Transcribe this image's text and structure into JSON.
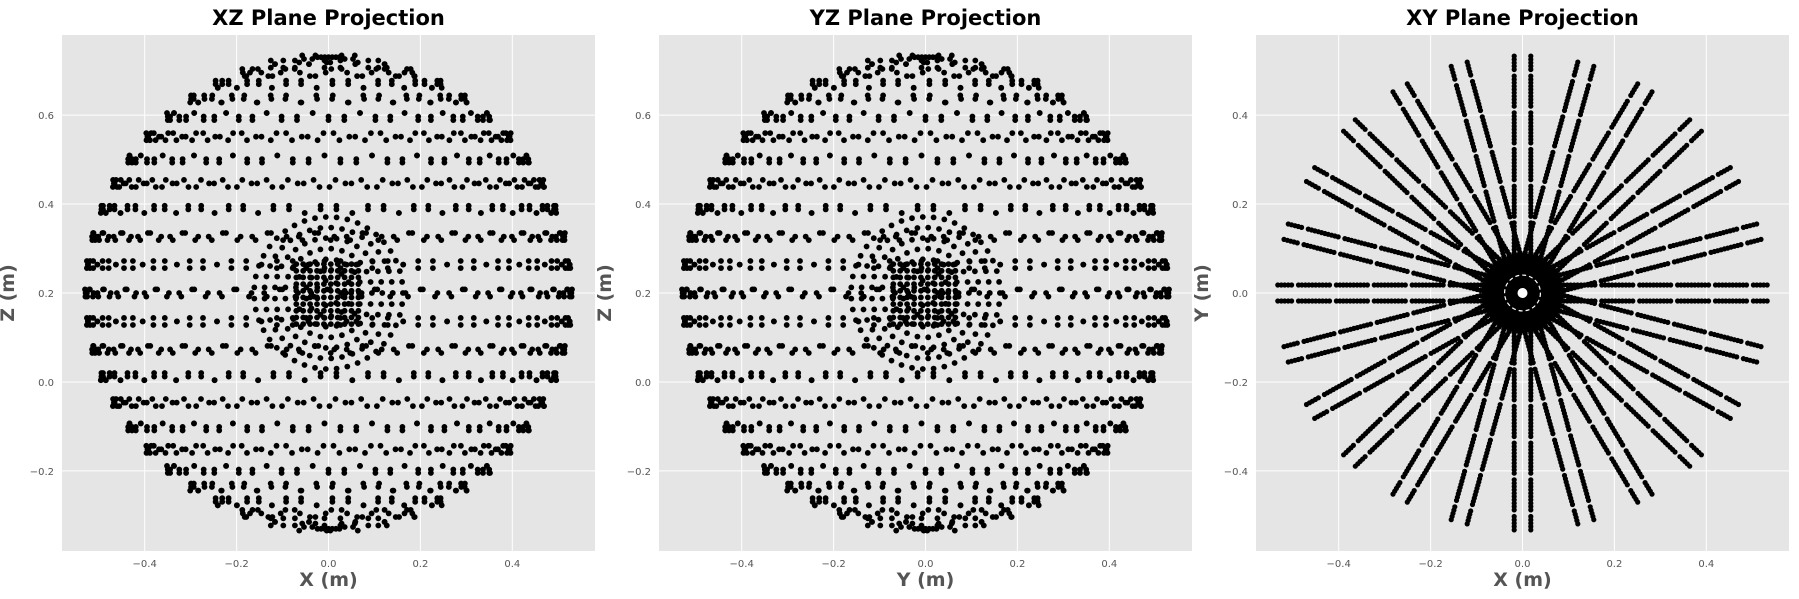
{
  "chart_data": [
    {
      "type": "scatter",
      "title": "XZ Plane Projection",
      "xlabel": "X (m)",
      "ylabel": "Z (m)",
      "xlim": [
        -0.58,
        0.58
      ],
      "ylim": [
        -0.38,
        0.78
      ],
      "xticks": [
        -0.4,
        -0.2,
        0.0,
        0.2,
        0.4
      ],
      "xtick_labels": [
        "−0.4",
        "−0.2",
        "0.0",
        "0.2",
        "0.4"
      ],
      "yticks": [
        -0.2,
        0.0,
        0.2,
        0.4,
        0.6
      ],
      "ytick_labels": [
        "−0.2",
        "0.0",
        "0.2",
        "0.4",
        "0.6"
      ],
      "grid": true,
      "background": "#e5e5e5",
      "marker_color": "#000000",
      "point_set": "spherical shell centered at (0, 0.2) with radius 0.53, layered rings of points"
    },
    {
      "type": "scatter",
      "title": "YZ Plane Projection",
      "xlabel": "Y (m)",
      "ylabel": "Z (m)",
      "xlim": [
        -0.58,
        0.58
      ],
      "ylim": [
        -0.38,
        0.78
      ],
      "xticks": [
        -0.4,
        -0.2,
        0.0,
        0.2,
        0.4
      ],
      "xtick_labels": [
        "−0.4",
        "−0.2",
        "0.0",
        "0.2",
        "0.4"
      ],
      "yticks": [
        -0.2,
        0.0,
        0.2,
        0.4,
        0.6
      ],
      "ytick_labels": [
        "−0.2",
        "0.0",
        "0.2",
        "0.4",
        "0.6"
      ],
      "grid": true,
      "background": "#e5e5e5",
      "marker_color": "#000000",
      "point_set": "spherical shell centered at (0, 0.2) with radius 0.53, layered rings of points"
    },
    {
      "type": "scatter",
      "title": "XY Plane Projection",
      "xlabel": "X (m)",
      "ylabel": "Y (m)",
      "xlim": [
        -0.58,
        0.58
      ],
      "ylim": [
        -0.58,
        0.58
      ],
      "xticks": [
        -0.4,
        -0.2,
        0.0,
        0.2,
        0.4
      ],
      "xtick_labels": [
        "−0.4",
        "−0.2",
        "0.0",
        "0.2",
        "0.4"
      ],
      "yticks": [
        -0.4,
        -0.2,
        0.0,
        0.2,
        0.4
      ],
      "ytick_labels": [
        "−0.4",
        "−0.2",
        "0.0",
        "0.2",
        "0.4"
      ],
      "grid": true,
      "background": "#e5e5e5",
      "marker_color": "#000000",
      "center_hole_color": "#ffffff",
      "point_set": "24 radial spokes of paired point lines from r = 0.08 to r = 0.53, dense disk near origin with white center"
    }
  ]
}
